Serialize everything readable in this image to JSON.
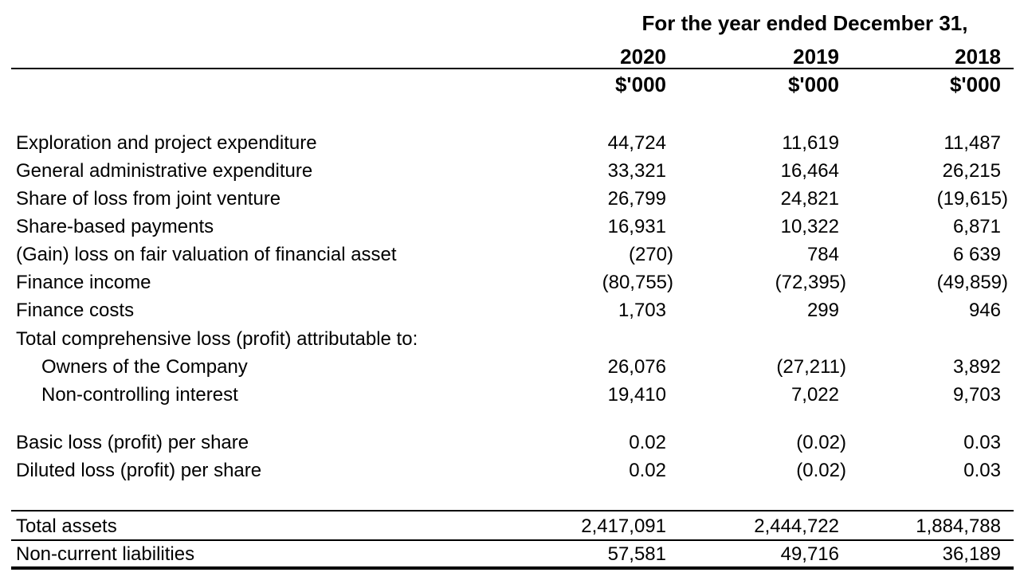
{
  "header": {
    "title": "For the year ended December 31,",
    "years": [
      "2020",
      "2019",
      "2018"
    ],
    "units": [
      "$'000",
      "$'000",
      "$'000"
    ]
  },
  "rows": [
    {
      "label": "Exploration and project expenditure",
      "values": [
        "44,724",
        "11,619",
        "11,487"
      ]
    },
    {
      "label": "General administrative expenditure",
      "values": [
        "33,321",
        "16,464",
        "26,215"
      ]
    },
    {
      "label": "Share of loss from joint venture",
      "values": [
        "26,799",
        "24,821",
        "(19,615)"
      ]
    },
    {
      "label": "Share-based payments",
      "values": [
        "16,931",
        "10,322",
        "6,871"
      ]
    },
    {
      "label": "(Gain) loss on fair valuation of financial asset",
      "values": [
        "(270)",
        "784",
        "6 639"
      ]
    },
    {
      "label": "Finance income",
      "values": [
        "(80,755)",
        "(72,395)",
        "(49,859)"
      ]
    },
    {
      "label": "Finance costs",
      "values": [
        "1,703",
        "299",
        "946"
      ]
    },
    {
      "label": "Total comprehensive loss (profit) attributable to:",
      "values": [
        "",
        "",
        ""
      ]
    },
    {
      "label": "Owners of the Company",
      "values": [
        "26,076",
        "(27,211)",
        "3,892"
      ]
    },
    {
      "label": "Non-controlling interest",
      "values": [
        "19,410",
        "7,022",
        "9,703"
      ]
    }
  ],
  "per_share": [
    {
      "label": "Basic loss (profit) per share",
      "values": [
        "0.02",
        "(0.02)",
        "0.03"
      ]
    },
    {
      "label": "Diluted loss (profit) per share",
      "values": [
        "0.02",
        "(0.02)",
        "0.03"
      ]
    }
  ],
  "balance": [
    {
      "label": "Total assets",
      "values": [
        "2,417,091",
        "2,444,722",
        "1,884,788"
      ]
    },
    {
      "label": "Non-current liabilities",
      "values": [
        "57,581",
        "49,716",
        "36,189"
      ]
    }
  ]
}
